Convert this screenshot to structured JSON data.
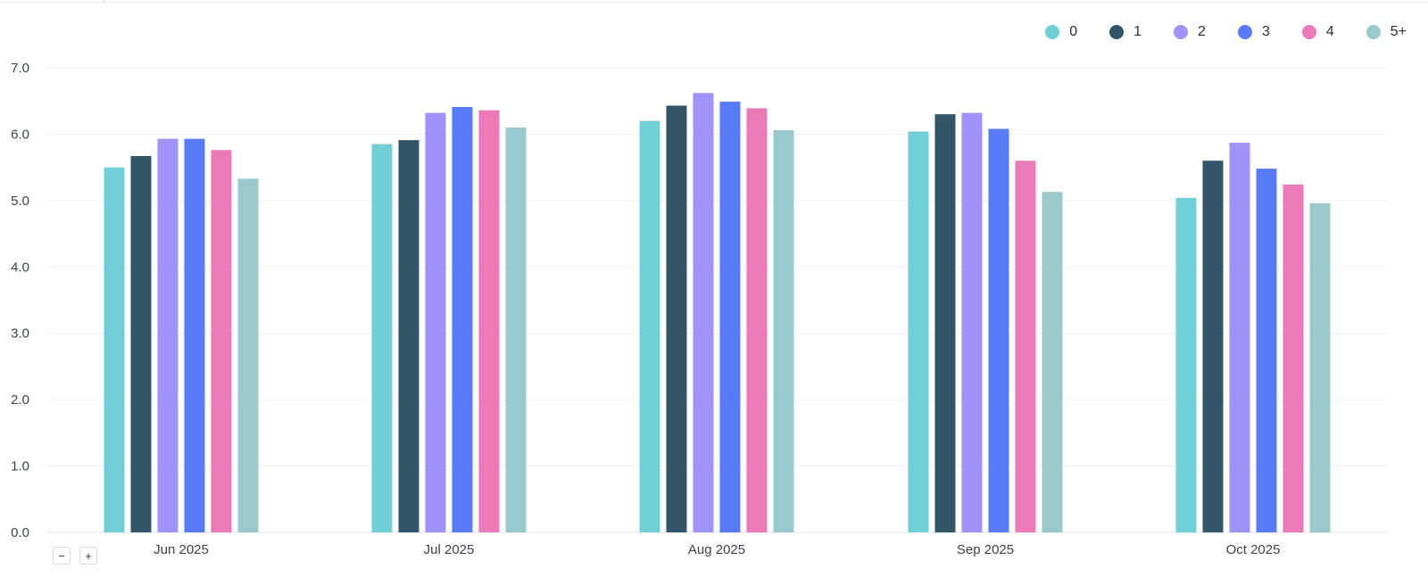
{
  "chart_data": {
    "type": "bar",
    "categories": [
      "Jun 2025",
      "Jul 2025",
      "Aug 2025",
      "Sep 2025",
      "Oct 2025"
    ],
    "series": [
      {
        "name": "0",
        "color": "#71cfd8",
        "values": [
          5.5,
          5.85,
          6.2,
          6.04,
          5.04
        ]
      },
      {
        "name": "1",
        "color": "#325667",
        "values": [
          5.67,
          5.91,
          6.43,
          6.3,
          5.6
        ]
      },
      {
        "name": "2",
        "color": "#a093f7",
        "values": [
          5.93,
          6.32,
          6.62,
          6.32,
          5.87
        ]
      },
      {
        "name": "3",
        "color": "#587cf9",
        "values": [
          5.93,
          6.41,
          6.49,
          6.08,
          5.48
        ]
      },
      {
        "name": "4",
        "color": "#ec79b8",
        "values": [
          5.76,
          6.36,
          6.39,
          5.6,
          5.24
        ]
      },
      {
        "name": "5+",
        "color": "#99c9ca",
        "values": [
          5.33,
          6.1,
          6.06,
          5.13,
          4.96
        ]
      }
    ],
    "yticks": [
      "0.0",
      "1.0",
      "2.0",
      "3.0",
      "4.0",
      "5.0",
      "6.0",
      "7.0"
    ],
    "ylim": [
      0,
      7
    ],
    "grid": true,
    "legend_position": "top-right"
  },
  "controls": {
    "zoom_out_label": "−",
    "zoom_in_label": "+"
  }
}
